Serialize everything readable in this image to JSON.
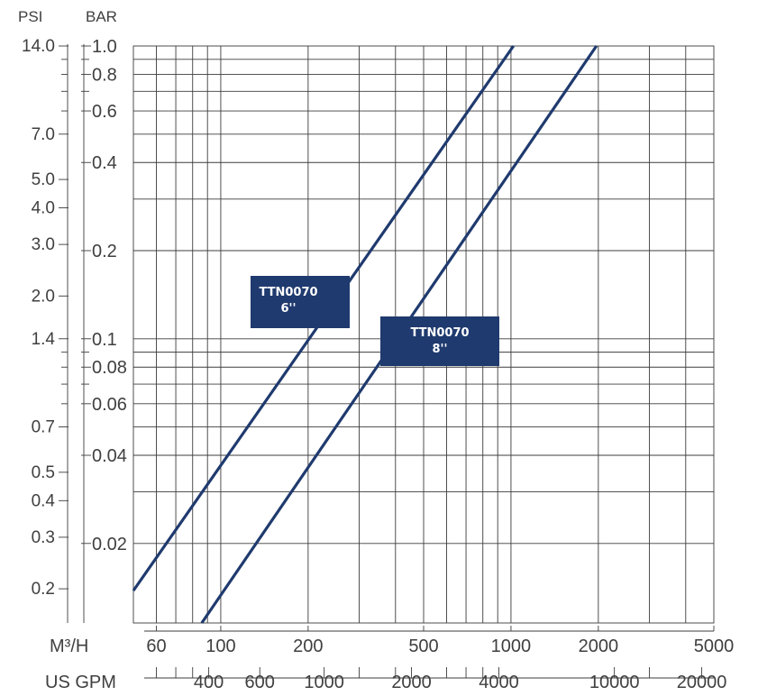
{
  "chart_data": {
    "type": "line",
    "title": "",
    "scale": "log-log",
    "grid": true,
    "axes": {
      "left_outer": {
        "label": "PSI",
        "ticks": [
          {
            "label": "14.0",
            "value": 1.0
          },
          {
            "label": "7.0",
            "value": 0.5
          },
          {
            "label": "5.0",
            "value": 0.35
          },
          {
            "label": "4.0",
            "value": 0.28
          },
          {
            "label": "3.0",
            "value": 0.21
          },
          {
            "label": "2.0",
            "value": 0.14
          },
          {
            "label": "1.4",
            "value": 0.1
          },
          {
            "label": "0.7",
            "value": 0.05
          },
          {
            "label": "0.5",
            "value": 0.035
          },
          {
            "label": "0.4",
            "value": 0.028
          },
          {
            "label": "0.3",
            "value": 0.021
          },
          {
            "label": "0.2",
            "value": 0.014
          }
        ]
      },
      "left_inner": {
        "label": "BAR",
        "ticks": [
          {
            "label": "1.0",
            "value": 1.0
          },
          {
            "label": "0.8",
            "value": 0.8
          },
          {
            "label": "0.6",
            "value": 0.6
          },
          {
            "label": "0.4",
            "value": 0.4
          },
          {
            "label": "0.2",
            "value": 0.2
          },
          {
            "label": "0.1",
            "value": 0.1
          },
          {
            "label": "0.08",
            "value": 0.08
          },
          {
            "label": "0.06",
            "value": 0.06
          },
          {
            "label": "0.04",
            "value": 0.04
          },
          {
            "label": "0.02",
            "value": 0.02
          }
        ],
        "range": [
          0.0107,
          1.0
        ]
      },
      "bottom_primary": {
        "label": "M³/H",
        "ticks": [
          60,
          100,
          200,
          500,
          1000,
          2000,
          5000
        ],
        "range": [
          50,
          5000
        ]
      },
      "bottom_secondary": {
        "label": "US GPM",
        "ticks": [
          {
            "label": "400",
            "value": 90.9
          },
          {
            "label": "600",
            "value": 136.3
          },
          {
            "label": "1000",
            "value": 227.1
          },
          {
            "label": "2000",
            "value": 454.2
          },
          {
            "label": "4000",
            "value": 908.5
          },
          {
            "label": "10000",
            "value": 2271.2
          },
          {
            "label": "20000",
            "value": 4542.5
          }
        ]
      }
    },
    "series": [
      {
        "name": "TTN0070\n6''",
        "x": [
          50,
          1020
        ],
        "y": [
          0.0138,
          1.0
        ],
        "color": "#1f3a6e"
      },
      {
        "name": "TTN0070\n8''",
        "x": [
          86,
          1970
        ],
        "y": [
          0.0107,
          1.0
        ],
        "color": "#1f3a6e"
      }
    ],
    "annotations": [
      {
        "line1": "TTN0070",
        "line2": "6''",
        "series": 0
      },
      {
        "line1": "TTN0070",
        "line2": "8''",
        "series": 1
      }
    ]
  }
}
